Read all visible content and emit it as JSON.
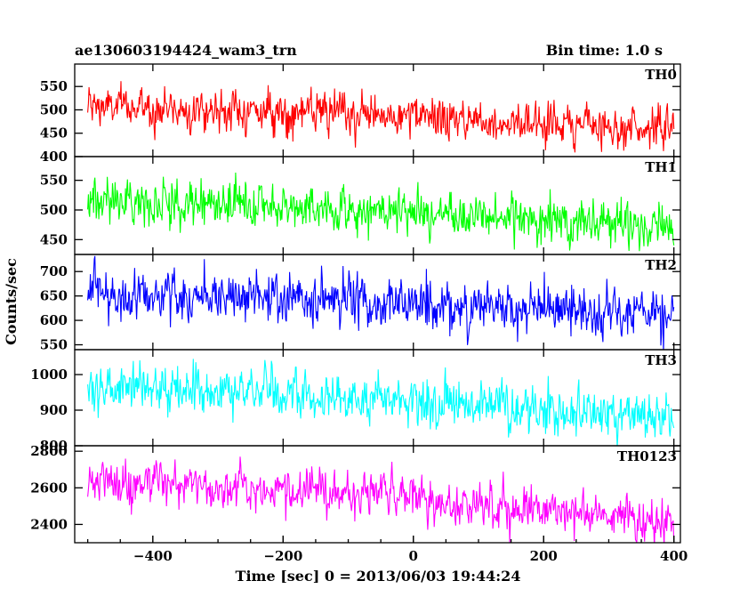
{
  "chart_data": {
    "type": "line",
    "title": "ae130603194424_wam3_trn",
    "subtitle": "Bin time: 1.0 s",
    "xlabel": "Time [sec] 0 = 2013/06/03 19:44:24",
    "ylabel": "Counts/sec",
    "xlim": [
      -520,
      410
    ],
    "x_range": [
      -500,
      400
    ],
    "x_ticks": [
      -400,
      -200,
      0,
      200,
      400
    ],
    "x_tick_labels": [
      "−400",
      "−200",
      "0",
      "200",
      "400"
    ],
    "grid": false,
    "panels": [
      {
        "name": "TH0",
        "color": "#ff0000",
        "ylim": [
          400,
          598
        ],
        "yticks": [
          400,
          450,
          500,
          550
        ],
        "ytick_labels": [
          "400",
          "450",
          "500",
          "550"
        ],
        "trend": [
          [
            -500,
            508
          ],
          [
            -300,
            500
          ],
          [
            -100,
            490
          ],
          [
            100,
            478
          ],
          [
            300,
            466
          ],
          [
            400,
            460
          ]
        ],
        "noise_amplitude": 28
      },
      {
        "name": "TH1",
        "color": "#00ff00",
        "ylim": [
          425,
          590
        ],
        "yticks": [
          450,
          500,
          550
        ],
        "ytick_labels": [
          "450",
          "500",
          "550"
        ],
        "trend": [
          [
            -500,
            518
          ],
          [
            -300,
            510
          ],
          [
            -100,
            500
          ],
          [
            100,
            490
          ],
          [
            300,
            478
          ],
          [
            400,
            472
          ]
        ],
        "noise_amplitude": 24
      },
      {
        "name": "TH2",
        "color": "#0000ff",
        "ylim": [
          540,
          735
        ],
        "yticks": [
          550,
          600,
          650,
          700
        ],
        "ytick_labels": [
          "550",
          "600",
          "650",
          "700"
        ],
        "trend": [
          [
            -500,
            655
          ],
          [
            -300,
            650
          ],
          [
            -100,
            640
          ],
          [
            100,
            628
          ],
          [
            300,
            612
          ],
          [
            400,
            605
          ]
        ],
        "noise_amplitude": 34
      },
      {
        "name": "TH3",
        "color": "#00ffff",
        "ylim": [
          800,
          1070
        ],
        "yticks": [
          800,
          900,
          1000
        ],
        "ytick_labels": [
          "800",
          "900",
          "1000"
        ],
        "trend": [
          [
            -500,
            965
          ],
          [
            -300,
            955
          ],
          [
            -100,
            935
          ],
          [
            100,
            912
          ],
          [
            300,
            892
          ],
          [
            400,
            880
          ]
        ],
        "noise_amplitude": 42
      },
      {
        "name": "TH0123",
        "color": "#ff00ff",
        "ylim": [
          2300,
          2830
        ],
        "yticks": [
          2400,
          2600,
          2800
        ],
        "ytick_labels": [
          "2400",
          "2600",
          "2800"
        ],
        "trend": [
          [
            -500,
            2640
          ],
          [
            -300,
            2610
          ],
          [
            -100,
            2570
          ],
          [
            100,
            2510
          ],
          [
            300,
            2450
          ],
          [
            400,
            2420
          ]
        ],
        "noise_amplitude": 75
      }
    ]
  }
}
